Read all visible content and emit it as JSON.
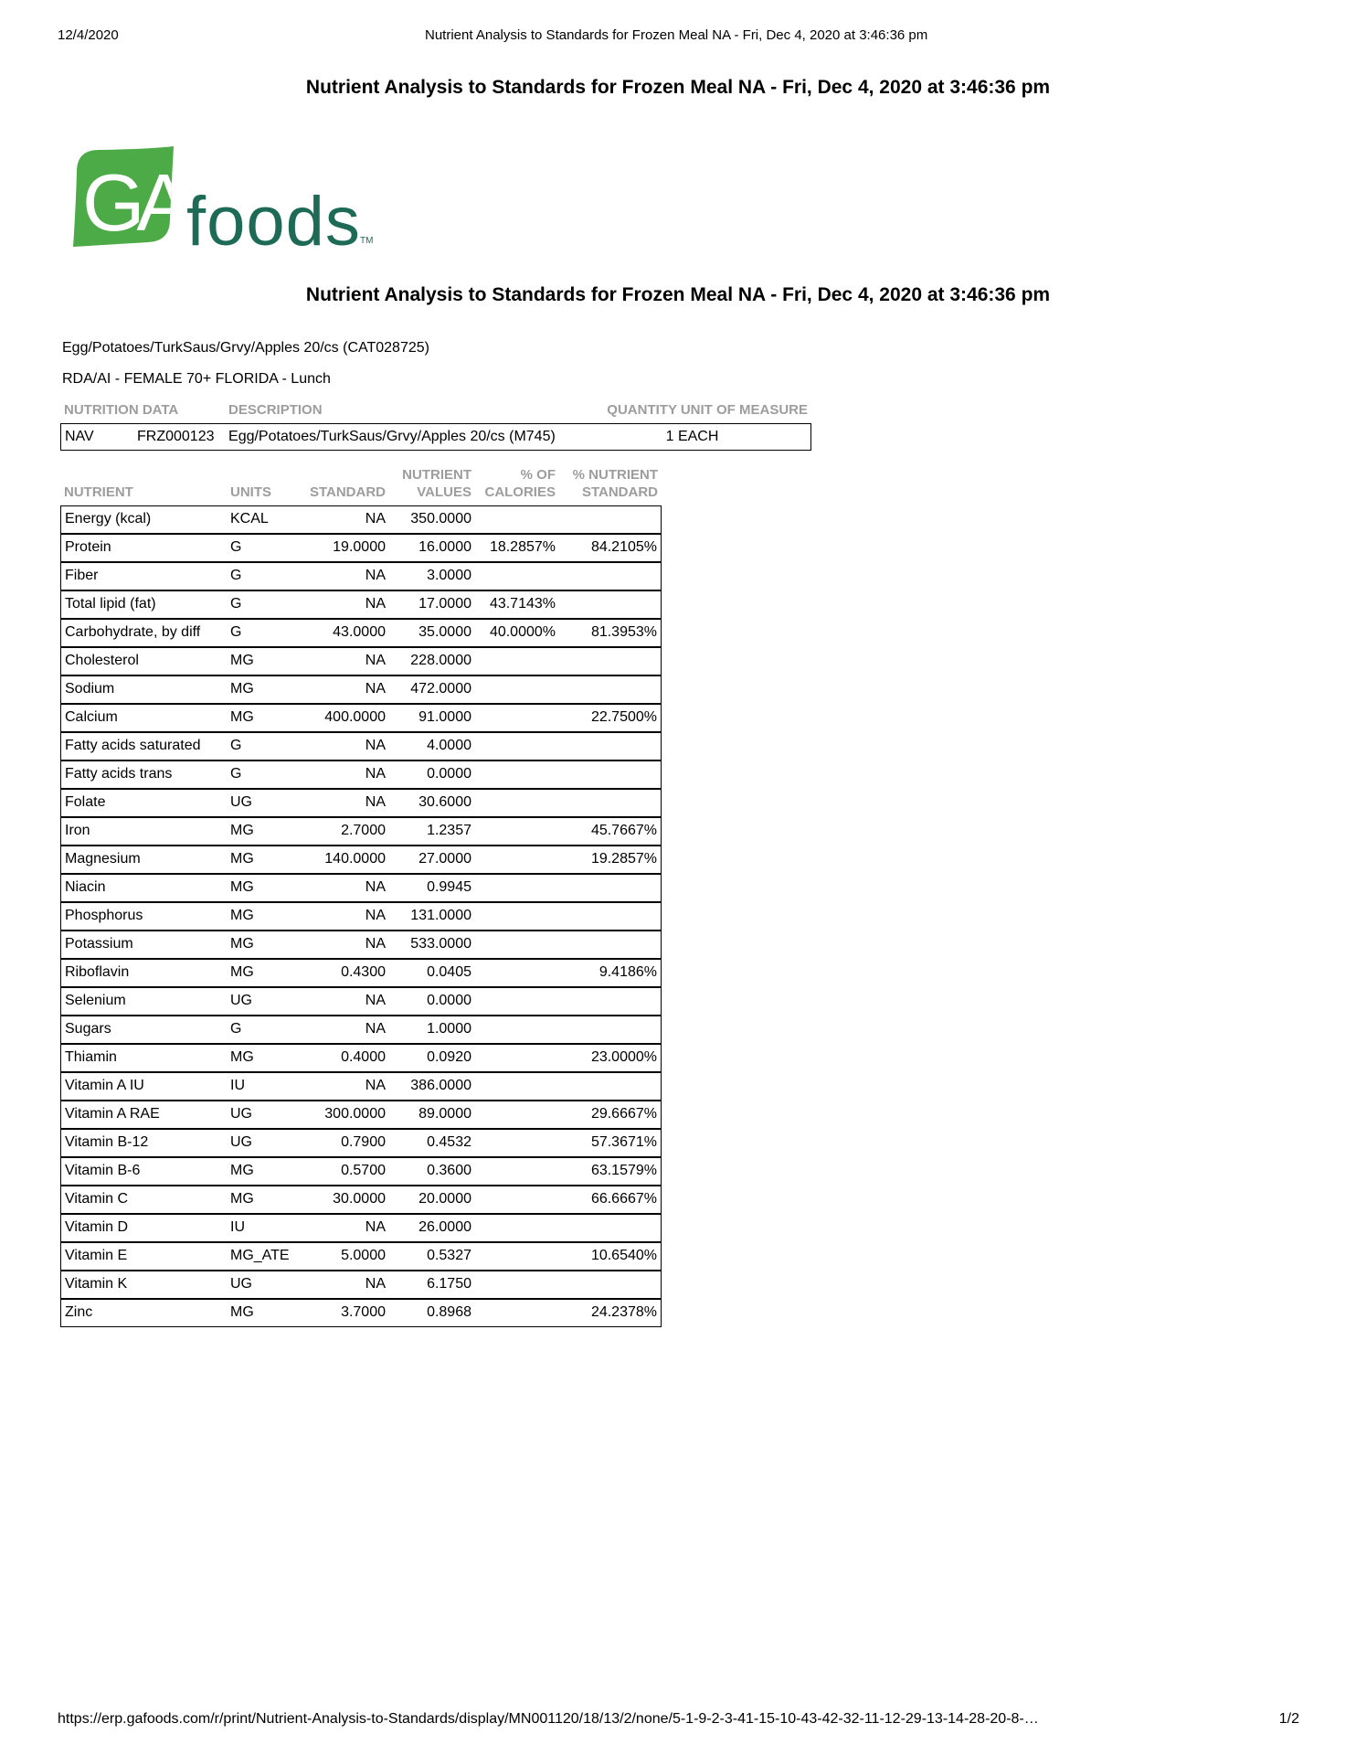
{
  "print_header": {
    "date": "12/4/2020",
    "title": "Nutrient Analysis to Standards for Frozen Meal NA - Fri, Dec 4, 2020 at 3:46:36 pm"
  },
  "report": {
    "title": "Nutrient Analysis to Standards for Frozen Meal NA - Fri, Dec 4, 2020 at 3:46:36 pm",
    "item_line": "Egg/Potatoes/TurkSaus/Grvy/Apples 20/cs (CAT028725)",
    "standard_line": "RDA/AI - FEMALE 70+ FLORIDA - Lunch"
  },
  "logo": {
    "ga": "GA",
    "foods": "foods",
    "tm": "TM",
    "leaf_green": "#4caa47",
    "text_green": "#1d6b57"
  },
  "nutrition_data_table": {
    "header_nutrition_data": "NUTRITION DATA",
    "header_description": "DESCRIPTION",
    "header_quantity": "QUANTITY UNIT OF MEASURE",
    "row": {
      "code": "NAV",
      "id": "FRZ000123",
      "description": "Egg/Potatoes/TurkSaus/Grvy/Apples 20/cs (M745)",
      "quantity": "1 EACH"
    }
  },
  "nutrient_table": {
    "headers": [
      {
        "l1": "",
        "l2": "NUTRIENT"
      },
      {
        "l1": "",
        "l2": "UNITS"
      },
      {
        "l1": "",
        "l2": "STANDARD"
      },
      {
        "l1": "NUTRIENT",
        "l2": "VALUES"
      },
      {
        "l1": "% OF",
        "l2": "CALORIES"
      },
      {
        "l1": "% NUTRIENT",
        "l2": "STANDARD"
      }
    ],
    "rows": [
      [
        "Energy (kcal)",
        "KCAL",
        "NA",
        "350.0000",
        "",
        ""
      ],
      [
        "Protein",
        "G",
        "19.0000",
        "16.0000",
        "18.2857%",
        "84.2105%"
      ],
      [
        "Fiber",
        "G",
        "NA",
        "3.0000",
        "",
        ""
      ],
      [
        "Total lipid (fat)",
        "G",
        "NA",
        "17.0000",
        "43.7143%",
        ""
      ],
      [
        "Carbohydrate, by diff",
        "G",
        "43.0000",
        "35.0000",
        "40.0000%",
        "81.3953%"
      ],
      [
        "Cholesterol",
        "MG",
        "NA",
        "228.0000",
        "",
        ""
      ],
      [
        "Sodium",
        "MG",
        "NA",
        "472.0000",
        "",
        ""
      ],
      [
        "Calcium",
        "MG",
        "400.0000",
        "91.0000",
        "",
        "22.7500%"
      ],
      [
        "Fatty acids saturated",
        "G",
        "NA",
        "4.0000",
        "",
        ""
      ],
      [
        "Fatty acids trans",
        "G",
        "NA",
        "0.0000",
        "",
        ""
      ],
      [
        "Folate",
        "UG",
        "NA",
        "30.6000",
        "",
        ""
      ],
      [
        "Iron",
        "MG",
        "2.7000",
        "1.2357",
        "",
        "45.7667%"
      ],
      [
        "Magnesium",
        "MG",
        "140.0000",
        "27.0000",
        "",
        "19.2857%"
      ],
      [
        "Niacin",
        "MG",
        "NA",
        "0.9945",
        "",
        ""
      ],
      [
        "Phosphorus",
        "MG",
        "NA",
        "131.0000",
        "",
        ""
      ],
      [
        "Potassium",
        "MG",
        "NA",
        "533.0000",
        "",
        ""
      ],
      [
        "Riboflavin",
        "MG",
        "0.4300",
        "0.0405",
        "",
        "9.4186%"
      ],
      [
        "Selenium",
        "UG",
        "NA",
        "0.0000",
        "",
        ""
      ],
      [
        "Sugars",
        "G",
        "NA",
        "1.0000",
        "",
        ""
      ],
      [
        "Thiamin",
        "MG",
        "0.4000",
        "0.0920",
        "",
        "23.0000%"
      ],
      [
        "Vitamin A IU",
        "IU",
        "NA",
        "386.0000",
        "",
        ""
      ],
      [
        "Vitamin A RAE",
        "UG",
        "300.0000",
        "89.0000",
        "",
        "29.6667%"
      ],
      [
        "Vitamin B-12",
        "UG",
        "0.7900",
        "0.4532",
        "",
        "57.3671%"
      ],
      [
        "Vitamin B-6",
        "MG",
        "0.5700",
        "0.3600",
        "",
        "63.1579%"
      ],
      [
        "Vitamin C",
        "MG",
        "30.0000",
        "20.0000",
        "",
        "66.6667%"
      ],
      [
        "Vitamin D",
        "IU",
        "NA",
        "26.0000",
        "",
        ""
      ],
      [
        "Vitamin E",
        "MG_ATE",
        "5.0000",
        "0.5327",
        "",
        "10.6540%"
      ],
      [
        "Vitamin K",
        "UG",
        "NA",
        "6.1750",
        "",
        ""
      ],
      [
        "Zinc",
        "MG",
        "3.7000",
        "0.8968",
        "",
        "24.2378%"
      ]
    ]
  },
  "footer": {
    "url": "https://erp.gafoods.com/r/print/Nutrient-Analysis-to-Standards/display/MN001120/18/13/2/none/5-1-9-2-3-41-15-10-43-42-32-11-12-29-13-14-28-20-8-…",
    "page": "1/2"
  }
}
